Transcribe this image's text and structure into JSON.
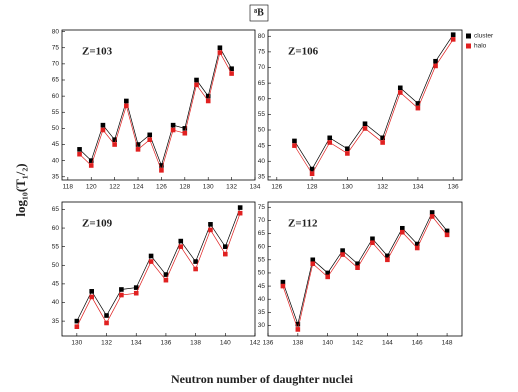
{
  "figure": {
    "top_label": "⁸B",
    "ylabel": "log₁₀(T₁/₂)",
    "xlabel": "Neutron number of daughter nuclei"
  },
  "chart_data": [
    {
      "type": "line",
      "annotation": "Z=103",
      "x": [
        119,
        120,
        121,
        122,
        123,
        124,
        125,
        126,
        127,
        128,
        129,
        130,
        131,
        132
      ],
      "series": [
        {
          "color": "#000000",
          "values": [
            43.5,
            40,
            51,
            46.5,
            58.5,
            45,
            48,
            38.5,
            51,
            50,
            65,
            60,
            75,
            68.5
          ]
        },
        {
          "color": "#e02020",
          "values": [
            42,
            38.5,
            49.5,
            45,
            57,
            43.5,
            46.5,
            37,
            49.5,
            48.5,
            63.5,
            58.5,
            73.5,
            67
          ]
        }
      ],
      "xlim": [
        117.5,
        134
      ],
      "xticks": [
        118,
        120,
        122,
        124,
        126,
        128,
        130,
        132,
        134
      ],
      "ylim": [
        34,
        80.5
      ],
      "yticks": [
        35,
        40,
        45,
        50,
        55,
        60,
        65,
        70,
        75,
        80
      ]
    },
    {
      "type": "line",
      "annotation": "Z=106",
      "x": [
        127,
        128,
        129,
        130,
        131,
        132,
        133,
        134,
        135,
        136
      ],
      "series": [
        {
          "name": "cluster",
          "color": "#000000",
          "values": [
            46.5,
            37.5,
            47.5,
            44,
            52,
            47.5,
            63.5,
            58.5,
            72,
            80.5
          ]
        },
        {
          "name": "halo",
          "color": "#e02020",
          "values": [
            45,
            36,
            46,
            42.5,
            50.5,
            46,
            62,
            57,
            70.5,
            79
          ]
        }
      ],
      "legend": "upper right",
      "xlim": [
        125.5,
        136.5
      ],
      "xticks": [
        126,
        128,
        130,
        132,
        134,
        136
      ],
      "ylim": [
        34,
        82
      ],
      "yticks": [
        35,
        40,
        45,
        50,
        55,
        60,
        65,
        70,
        75,
        80
      ]
    },
    {
      "type": "line",
      "annotation": "Z=109",
      "x": [
        130,
        131,
        132,
        133,
        134,
        135,
        136,
        137,
        138,
        139,
        140,
        141
      ],
      "series": [
        {
          "color": "#000000",
          "values": [
            35,
            43,
            36.5,
            43.5,
            44,
            52.5,
            47.5,
            56.5,
            51,
            61,
            55,
            65.5
          ]
        },
        {
          "color": "#e02020",
          "values": [
            33.5,
            41.5,
            34.5,
            42,
            42.5,
            51,
            46,
            55,
            49,
            59.5,
            53,
            64
          ]
        }
      ],
      "xlim": [
        129,
        142
      ],
      "xticks": [
        130,
        132,
        134,
        136,
        138,
        140,
        142
      ],
      "ylim": [
        31,
        67
      ],
      "yticks": [
        35,
        40,
        45,
        50,
        55,
        60,
        65
      ]
    },
    {
      "type": "line",
      "annotation": "Z=112",
      "x": [
        137,
        138,
        139,
        140,
        141,
        142,
        143,
        144,
        145,
        146,
        147,
        148
      ],
      "series": [
        {
          "color": "#000000",
          "values": [
            46.5,
            30.5,
            55,
            50,
            58.5,
            53.5,
            63,
            56.5,
            67,
            61,
            73,
            66
          ]
        },
        {
          "color": "#e02020",
          "values": [
            45,
            28.5,
            53.5,
            48.5,
            57,
            52,
            61.5,
            55,
            65.5,
            59.5,
            71.5,
            64.5
          ]
        }
      ],
      "xlim": [
        136,
        149
      ],
      "xticks": [
        136,
        138,
        140,
        142,
        144,
        146,
        148
      ],
      "ylim": [
        26,
        77
      ],
      "yticks": [
        30,
        35,
        40,
        45,
        50,
        55,
        60,
        65,
        70,
        75
      ]
    }
  ]
}
